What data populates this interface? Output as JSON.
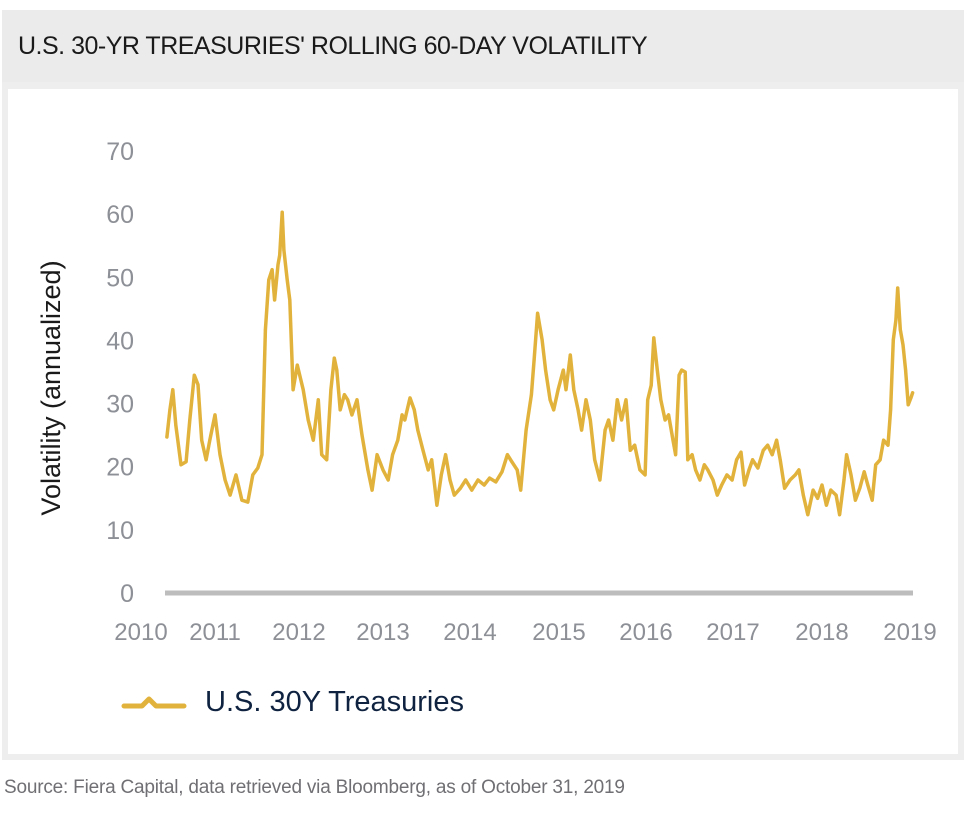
{
  "title": "U.S. 30-YR TREASURIES' ROLLING 60-DAY VOLATILITY",
  "source": "Source: Fiera Capital, data retrieved via Bloomberg, as of October 31, 2019",
  "colors": {
    "series": "#e2b33c",
    "tick_label": "#8e9097",
    "axis_line": "#bdbdbd",
    "ylabel": "#1a1a1a",
    "legend_text": "#0f2340",
    "title_bar": "#ebebeb"
  },
  "chart_data": {
    "type": "line",
    "title": "U.S. 30-YR TREASURIES' ROLLING 60-DAY VOLATILITY",
    "xlabel": "",
    "ylabel": "Volatility (annualized)",
    "ylim": [
      0,
      70
    ],
    "yticks": [
      0,
      10,
      20,
      30,
      40,
      50,
      60,
      70
    ],
    "xlim": [
      2010,
      2019
    ],
    "xticks": [
      "2010",
      "2011",
      "2012",
      "2013",
      "2014",
      "2015",
      "2016",
      "2017",
      "2018",
      "2019"
    ],
    "grid": false,
    "legend": {
      "position": "bottom-left",
      "entries": [
        "U.S. 30Y Treasuries"
      ]
    },
    "series": [
      {
        "name": "U.S. 30Y Treasuries",
        "x": [
          2010.35,
          2010.39,
          2010.43,
          2010.47,
          2010.54,
          2010.61,
          2010.66,
          2010.72,
          2010.77,
          2010.82,
          2010.88,
          2010.93,
          2011.0,
          2011.06,
          2011.12,
          2011.18,
          2011.25,
          2011.32,
          2011.39,
          2011.45,
          2011.51,
          2011.56,
          2011.6,
          2011.64,
          2011.68,
          2011.71,
          2011.75,
          2011.77,
          2011.8,
          2011.82,
          2011.86,
          2011.89,
          2011.93,
          2011.98,
          2012.05,
          2012.11,
          2012.17,
          2012.23,
          2012.27,
          2012.33,
          2012.38,
          2012.42,
          2012.45,
          2012.49,
          2012.54,
          2012.58,
          2012.63,
          2012.69,
          2012.75,
          2012.82,
          2012.87,
          2012.93,
          2013.0,
          2013.06,
          2013.11,
          2013.17,
          2013.22,
          2013.25,
          2013.31,
          2013.36,
          2013.4,
          2013.46,
          2013.52,
          2013.56,
          2013.62,
          2013.67,
          2013.72,
          2013.77,
          2013.82,
          2013.89,
          2013.95,
          2014.02,
          2014.09,
          2014.16,
          2014.22,
          2014.29,
          2014.36,
          2014.42,
          2014.47,
          2014.53,
          2014.57,
          2014.63,
          2014.69,
          2014.72,
          2014.76,
          2014.81,
          2014.85,
          2014.9,
          2014.94,
          2014.99,
          2015.05,
          2015.08,
          2015.13,
          2015.17,
          2015.22,
          2015.26,
          2015.31,
          2015.36,
          2015.41,
          2015.47,
          2015.53,
          2015.57,
          2015.62,
          2015.67,
          2015.72,
          2015.77,
          2015.82,
          2015.87,
          2015.93,
          2015.99,
          2016.02,
          2016.06,
          2016.09,
          2016.13,
          2016.17,
          2016.22,
          2016.26,
          2016.31,
          2016.34,
          2016.38,
          2016.41,
          2016.45,
          2016.48,
          2016.53,
          2016.57,
          2016.62,
          2016.67,
          2016.71,
          2016.77,
          2016.82,
          2016.87,
          2016.93,
          2016.99,
          2017.04,
          2017.09,
          2017.13,
          2017.18,
          2017.22,
          2017.28,
          2017.34,
          2017.39,
          2017.44,
          2017.49,
          2017.53,
          2017.58,
          2017.64,
          2017.7,
          2017.74,
          2017.79,
          2017.84,
          2017.9,
          2017.95,
          2018.0,
          2018.05,
          2018.1,
          2018.16,
          2018.2,
          2018.25,
          2018.28,
          2018.33,
          2018.38,
          2018.43,
          2018.48,
          2018.52,
          2018.57,
          2018.61,
          2018.66,
          2018.7,
          2018.75,
          2018.78,
          2018.81,
          2018.84,
          2018.86,
          2018.89,
          2018.92,
          2018.95,
          2018.98,
          2019.01,
          2019.03
        ],
        "values": [
          24.7,
          29.0,
          32.2,
          26.6,
          20.3,
          20.8,
          27.4,
          34.5,
          33.0,
          24.2,
          21.1,
          24.2,
          28.2,
          21.9,
          17.9,
          15.5,
          18.7,
          14.7,
          14.4,
          18.7,
          19.8,
          21.9,
          41.7,
          49.6,
          51.2,
          46.4,
          52.0,
          53.5,
          60.3,
          54.3,
          49.6,
          46.4,
          32.2,
          36.1,
          32.2,
          27.4,
          24.2,
          30.6,
          21.9,
          21.1,
          32.2,
          37.2,
          35.3,
          29.0,
          31.4,
          30.6,
          28.2,
          30.6,
          25.0,
          19.5,
          16.3,
          21.9,
          19.5,
          17.9,
          21.9,
          24.2,
          28.2,
          27.4,
          30.9,
          29.0,
          25.8,
          22.6,
          19.5,
          21.1,
          13.9,
          18.7,
          21.9,
          17.9,
          15.5,
          16.6,
          17.9,
          16.3,
          17.9,
          17.1,
          18.2,
          17.6,
          19.2,
          21.9,
          20.8,
          19.5,
          16.3,
          25.8,
          31.4,
          36.9,
          44.3,
          40.1,
          35.3,
          30.6,
          29.0,
          32.2,
          35.3,
          32.2,
          37.7,
          32.2,
          29.0,
          25.8,
          30.6,
          27.4,
          21.1,
          17.9,
          25.8,
          27.4,
          24.2,
          30.6,
          27.4,
          30.6,
          22.6,
          23.4,
          19.5,
          18.7,
          30.6,
          32.9,
          40.4,
          35.3,
          30.6,
          27.4,
          28.2,
          24.2,
          21.9,
          34.5,
          35.3,
          35.0,
          21.1,
          21.9,
          19.5,
          17.9,
          20.3,
          19.5,
          17.9,
          15.5,
          17.1,
          18.7,
          17.9,
          21.1,
          22.3,
          17.1,
          19.5,
          21.1,
          19.8,
          22.6,
          23.4,
          21.9,
          24.2,
          21.1,
          16.6,
          17.9,
          18.7,
          19.5,
          15.5,
          12.4,
          16.3,
          15.0,
          17.1,
          13.9,
          16.3,
          15.5,
          12.4,
          17.9,
          21.9,
          18.7,
          14.7,
          16.6,
          19.2,
          17.1,
          14.7,
          20.3,
          21.1,
          24.2,
          23.4,
          29.0,
          40.1,
          43.2,
          48.3,
          41.7,
          39.3,
          35.3,
          29.8,
          30.9,
          31.7
        ]
      }
    ]
  }
}
